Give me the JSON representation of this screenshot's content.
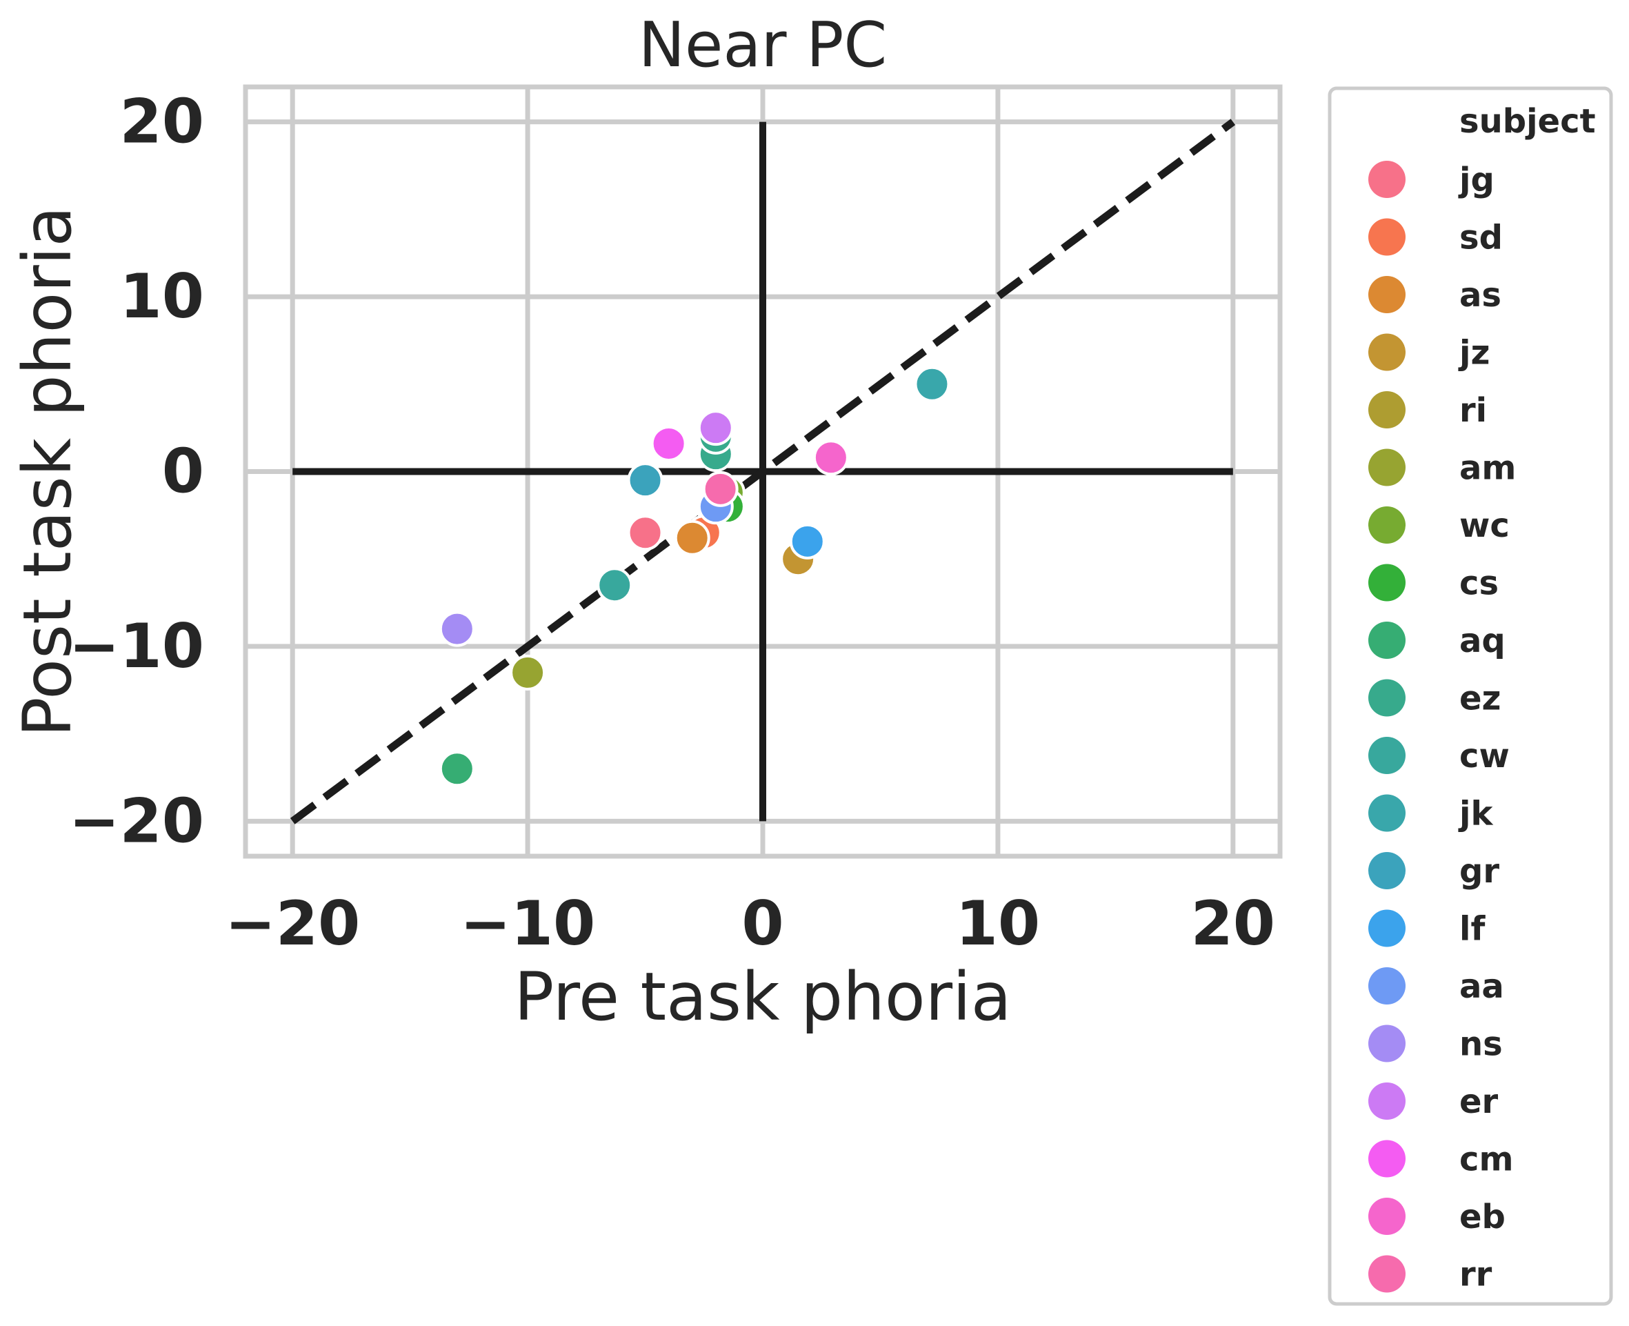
{
  "chart_data": {
    "type": "scatter",
    "title": "Near PC",
    "xlabel": "Pre task phoria",
    "ylabel": "Post task phoria",
    "xlim": [
      -22,
      22
    ],
    "ylim": [
      -22,
      22
    ],
    "xticks": [
      -20,
      -10,
      0,
      10,
      20
    ],
    "yticks": [
      -20,
      -10,
      0,
      10,
      20
    ],
    "xtick_labels": [
      "−20",
      "−10",
      "0",
      "10",
      "20"
    ],
    "ytick_labels": [
      "−20",
      "−10",
      "0",
      "10",
      "20"
    ],
    "grid": true,
    "reference_lines": {
      "identity_dashed": {
        "from": [
          -20,
          -20
        ],
        "to": [
          20,
          20
        ]
      },
      "horizontal_zero": {
        "from": [
          -20,
          0
        ],
        "to": [
          20,
          0
        ]
      },
      "vertical_zero": {
        "from": [
          0,
          -20
        ],
        "to": [
          0,
          20
        ]
      }
    },
    "legend": {
      "title": "subject",
      "placement": "outside-right"
    },
    "series": [
      {
        "name": "jg",
        "color": "#f77189",
        "points": [
          [
            -5,
            -3.5
          ]
        ]
      },
      {
        "name": "sd",
        "color": "#f7754f",
        "points": [
          [
            -2.5,
            -3.5
          ]
        ]
      },
      {
        "name": "as",
        "color": "#dc8932",
        "points": [
          [
            -3,
            -3.8
          ]
        ]
      },
      {
        "name": "jz",
        "color": "#c39532",
        "points": [
          [
            1.5,
            -5
          ]
        ]
      },
      {
        "name": "ri",
        "color": "#ae9d31",
        "points": [
          [
            -1.8,
            -1
          ]
        ]
      },
      {
        "name": "am",
        "color": "#97a431",
        "points": [
          [
            -10,
            -11.5
          ]
        ]
      },
      {
        "name": "wc",
        "color": "#77ab31",
        "points": [
          [
            -1.5,
            -1.2
          ]
        ]
      },
      {
        "name": "cs",
        "color": "#33b039",
        "points": [
          [
            -1.5,
            -2
          ]
        ]
      },
      {
        "name": "aq",
        "color": "#36ad73",
        "points": [
          [
            -13,
            -17
          ]
        ]
      },
      {
        "name": "ez",
        "color": "#37aa8c",
        "points": [
          [
            -2,
            1
          ],
          [
            -2,
            2
          ]
        ]
      },
      {
        "name": "cw",
        "color": "#38a89d",
        "points": [
          [
            -6.3,
            -6.5
          ]
        ]
      },
      {
        "name": "jk",
        "color": "#39a7ab",
        "points": [
          [
            7.2,
            5
          ]
        ]
      },
      {
        "name": "gr",
        "color": "#3ba3bc",
        "points": [
          [
            -5,
            -0.5
          ]
        ]
      },
      {
        "name": "lf",
        "color": "#3ba3ec",
        "points": [
          [
            1.9,
            -4
          ]
        ]
      },
      {
        "name": "aa",
        "color": "#6e9af4",
        "points": [
          [
            -2,
            -2
          ]
        ]
      },
      {
        "name": "ns",
        "color": "#a48cf4",
        "points": [
          [
            -13,
            -9
          ]
        ]
      },
      {
        "name": "er",
        "color": "#cc7af4",
        "points": [
          [
            -2,
            2.5
          ]
        ]
      },
      {
        "name": "cm",
        "color": "#f45cf2",
        "points": [
          [
            -4,
            1.6
          ]
        ]
      },
      {
        "name": "eb",
        "color": "#f565cc",
        "points": [
          [
            2.9,
            0.8
          ]
        ]
      },
      {
        "name": "rr",
        "color": "#f66bad",
        "points": [
          [
            -1.8,
            -1
          ]
        ]
      }
    ]
  }
}
